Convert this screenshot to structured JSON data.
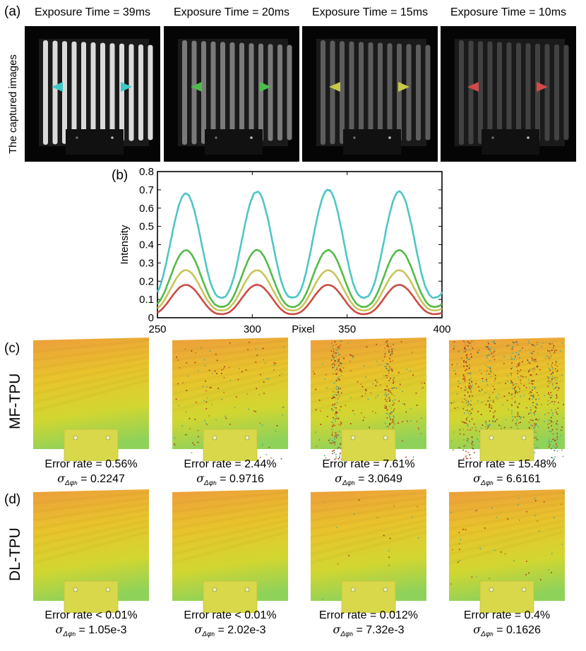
{
  "panel_labels": {
    "a": "(a)",
    "b": "(b)",
    "c": "(c)",
    "d": "(d)"
  },
  "captured": {
    "row_label": "The captured images",
    "columns": [
      {
        "title": "Exposure Time = 39ms",
        "marker_color": "#3ec8c8",
        "brightness": 1.0
      },
      {
        "title": "Exposure Time = 20ms",
        "marker_color": "#4cbd4c",
        "brightness": 0.55
      },
      {
        "title": "Exposure Time = 15ms",
        "marker_color": "#c8c84a",
        "brightness": 0.42
      },
      {
        "title": "Exposure Time = 10ms",
        "marker_color": "#d24a4a",
        "brightness": 0.3
      }
    ]
  },
  "mf_tpu": {
    "row_label": "MF-TPU",
    "items": [
      {
        "error": "Error rate = 0.56%",
        "sigma_value": " = 0.2247",
        "noise": 0.0
      },
      {
        "error": "Error rate = 2.44%",
        "sigma_value": " = 0.9716",
        "noise": 0.15
      },
      {
        "error": "Error rate = 7.61%",
        "sigma_value": " = 3.0649",
        "noise": 0.5
      },
      {
        "error": "Error rate = 15.48%",
        "sigma_value": " = 6.6161",
        "noise": 0.9
      }
    ]
  },
  "dl_tpu": {
    "row_label": "DL-TPU",
    "items": [
      {
        "error": "Error rate < 0.01%",
        "sigma_value": " = 1.05e-3",
        "noise": 0.0
      },
      {
        "error": "Error rate < 0.01%",
        "sigma_value": " = 2.02e-3",
        "noise": 0.0
      },
      {
        "error": "Error rate = 0.012%",
        "sigma_value": " = 7.32e-3",
        "noise": 0.02
      },
      {
        "error": "Error rate = 0.4%",
        "sigma_value": " = 0.1626",
        "noise": 0.06
      }
    ]
  },
  "sigma_symbol": "σ",
  "sigma_subscript": "Δφ",
  "sigma_subsub": "h",
  "chart_data": {
    "type": "line",
    "xlabel": "Pixel",
    "ylabel": "Intensity",
    "xlim": [
      250,
      400
    ],
    "ylim": [
      0,
      0.8
    ],
    "xticks": [
      250,
      300,
      350,
      400
    ],
    "yticks": [
      0,
      0.1,
      0.2,
      0.3,
      0.4,
      0.5,
      0.6,
      0.7,
      0.8
    ],
    "period": 37.5,
    "first_peak": 265,
    "series": [
      {
        "color": "#4ec6c6",
        "peaks": [
          0.68,
          0.69,
          0.7,
          0.69,
          0.66
        ],
        "trough": 0.11
      },
      {
        "color": "#54bb48",
        "peaks": [
          0.37,
          0.37,
          0.37,
          0.37,
          0.36
        ],
        "trough": 0.06
      },
      {
        "color": "#c8c55a",
        "peaks": [
          0.26,
          0.26,
          0.26,
          0.26,
          0.25
        ],
        "trough": 0.04
      },
      {
        "color": "#cc4b45",
        "peaks": [
          0.18,
          0.18,
          0.18,
          0.18,
          0.17
        ],
        "trough": 0.02
      }
    ]
  }
}
